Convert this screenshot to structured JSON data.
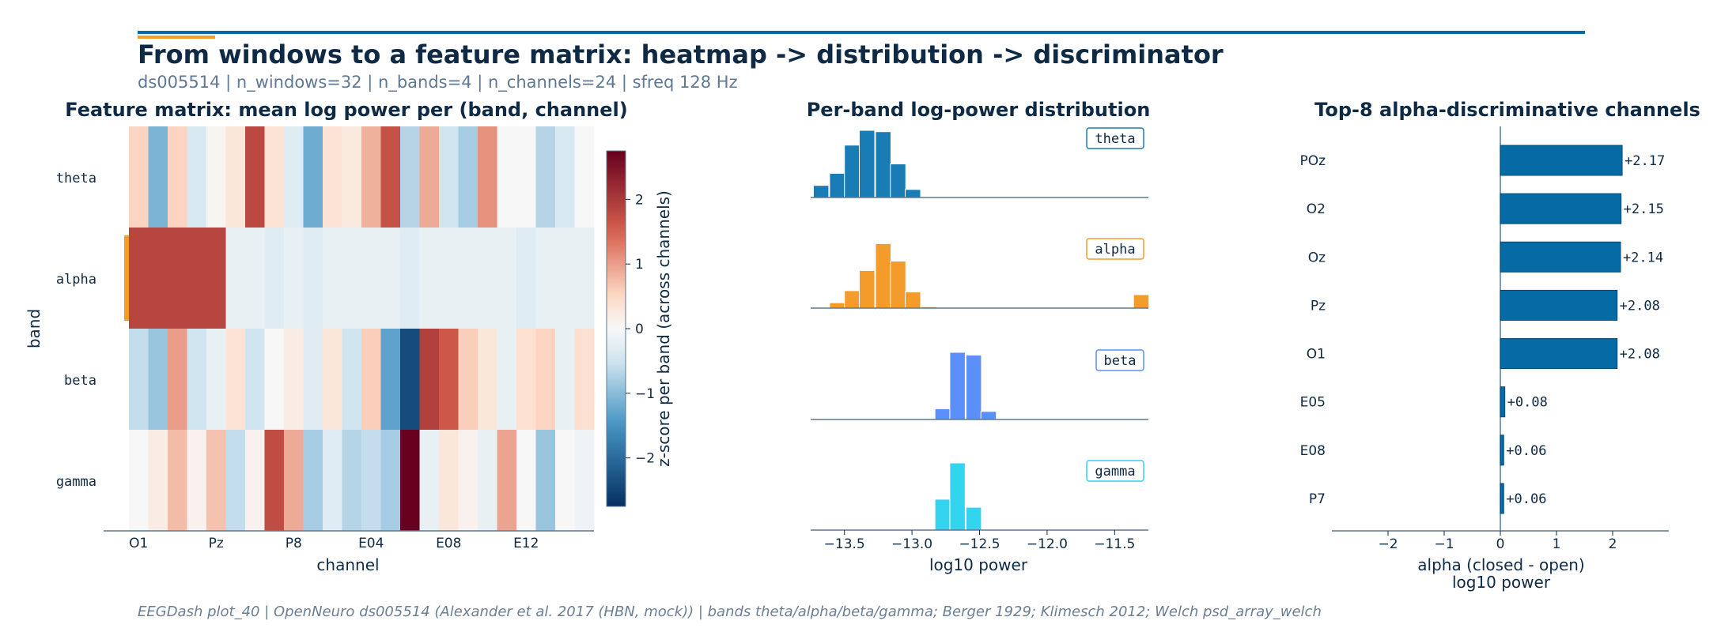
{
  "header": {
    "title": "From windows to a feature matrix: heatmap -> distribution -> discriminator",
    "subtitle": "ds005514 | n_windows=32 | n_bands=4 | n_channels=24 | sfreq 128 Hz"
  },
  "footer": "EEGDash plot_40 | OpenNeuro ds005514 (Alexander et al. 2017 (HBN, mock)) | bands theta/alpha/beta/gamma; Berger 1929; Klimesch 2012; Welch psd_array_welch",
  "colors": {
    "accent_blue": "#066aa5",
    "accent_orange": "#f39c2b",
    "theta": "#1a7cb5",
    "alpha": "#f39c2b",
    "beta": "#5b8ff9",
    "gamma": "#33d4ee"
  },
  "chart_data": [
    {
      "type": "heatmap",
      "title": "Feature matrix: mean log power per (band, channel)",
      "xlabel": "channel",
      "ylabel": "band",
      "rows": [
        "theta",
        "alpha",
        "beta",
        "gamma"
      ],
      "highlight_row": "alpha",
      "x_tick_labels": [
        "O1",
        "Pz",
        "P8",
        "E04",
        "E08",
        "E12"
      ],
      "x_tick_columns": [
        0,
        4,
        8,
        12,
        16,
        20
      ],
      "n_columns": 24,
      "z": [
        [
          0.55,
          -1.1,
          0.55,
          -0.4,
          0.05,
          0.3,
          1.8,
          0.35,
          -0.3,
          -1.2,
          0.35,
          0.25,
          0.85,
          1.7,
          -0.7,
          0.9,
          -0.5,
          -0.8,
          1.1,
          0.0,
          0.0,
          -0.7,
          -0.4,
          0.0
        ],
        [
          1.85,
          1.85,
          1.85,
          1.85,
          1.85,
          -0.2,
          -0.2,
          -0.3,
          -0.2,
          -0.3,
          -0.2,
          -0.2,
          -0.2,
          -0.2,
          -0.3,
          -0.2,
          -0.2,
          -0.2,
          -0.2,
          -0.2,
          -0.3,
          -0.2,
          -0.2,
          -0.2
        ],
        [
          -0.6,
          -0.9,
          1.0,
          -0.5,
          -0.2,
          0.35,
          -0.5,
          0.0,
          0.2,
          -0.3,
          0.3,
          -0.5,
          0.6,
          -1.3,
          -2.4,
          1.9,
          1.6,
          0.6,
          0.3,
          -0.2,
          0.4,
          0.55,
          -0.2,
          0.4
        ],
        [
          0.0,
          0.2,
          0.75,
          0.1,
          0.7,
          -0.6,
          0.1,
          1.75,
          0.9,
          -0.8,
          -0.3,
          -0.7,
          -0.6,
          -0.8,
          2.75,
          -0.2,
          0.3,
          0.1,
          -0.2,
          0.95,
          0.0,
          -0.9,
          0.0,
          -0.1
        ]
      ],
      "colorbar": {
        "label": "z-score per band (across channels)",
        "range": [
          -2.75,
          2.75
        ],
        "ticks": [
          2,
          1,
          0,
          -1,
          -2
        ],
        "tick_labels": [
          "2",
          "1",
          "0",
          "−1",
          "−2"
        ]
      }
    },
    {
      "type": "histogram",
      "title": "Per-band log-power distribution",
      "xlabel": "log10 power",
      "xlim": [
        -13.75,
        -11.25
      ],
      "x_ticks": [
        -13.5,
        -13.0,
        -12.5,
        -12.0,
        -11.5
      ],
      "x_tick_labels": [
        "−13.5",
        "−13.0",
        "−12.5",
        "−12.0",
        "−11.5"
      ],
      "bin_width": 0.114,
      "series": [
        {
          "name": "theta",
          "bins": [
            [
              -13.73,
              0.18
            ],
            [
              -13.61,
              0.36
            ],
            [
              -13.5,
              0.78
            ],
            [
              -13.39,
              1.0
            ],
            [
              -13.27,
              0.98
            ],
            [
              -13.16,
              0.5
            ],
            [
              -13.05,
              0.12
            ]
          ]
        },
        {
          "name": "alpha",
          "bins": [
            [
              -13.61,
              0.08
            ],
            [
              -13.5,
              0.26
            ],
            [
              -13.39,
              0.56
            ],
            [
              -13.27,
              0.96
            ],
            [
              -13.16,
              0.7
            ],
            [
              -13.05,
              0.24
            ],
            [
              -12.93,
              0.02
            ],
            [
              -11.36,
              0.2
            ]
          ]
        },
        {
          "name": "beta",
          "bins": [
            [
              -12.83,
              0.16
            ],
            [
              -12.72,
              1.0
            ],
            [
              -12.6,
              0.96
            ],
            [
              -12.49,
              0.12
            ]
          ]
        },
        {
          "name": "gamma",
          "bins": [
            [
              -12.83,
              0.46
            ],
            [
              -12.72,
              1.0
            ],
            [
              -12.6,
              0.34
            ]
          ]
        }
      ]
    },
    {
      "type": "bar",
      "orientation": "horizontal",
      "title": "Top-8 alpha-discriminative channels",
      "xlabel": "alpha (closed - open)\nlog10 power",
      "xlim": [
        -3.0,
        3.0
      ],
      "x_ticks": [
        -2,
        -1,
        0,
        1,
        2
      ],
      "x_tick_labels": [
        "−2",
        "−1",
        "0",
        "1",
        "2"
      ],
      "categories": [
        "POz",
        "O2",
        "Oz",
        "Pz",
        "O1",
        "E05",
        "E08",
        "P7"
      ],
      "values": [
        2.17,
        2.15,
        2.14,
        2.08,
        2.08,
        0.08,
        0.06,
        0.06
      ],
      "value_labels": [
        "+2.17",
        "+2.15",
        "+2.14",
        "+2.08",
        "+2.08",
        "+0.08",
        "+0.06",
        "+0.06"
      ]
    }
  ]
}
